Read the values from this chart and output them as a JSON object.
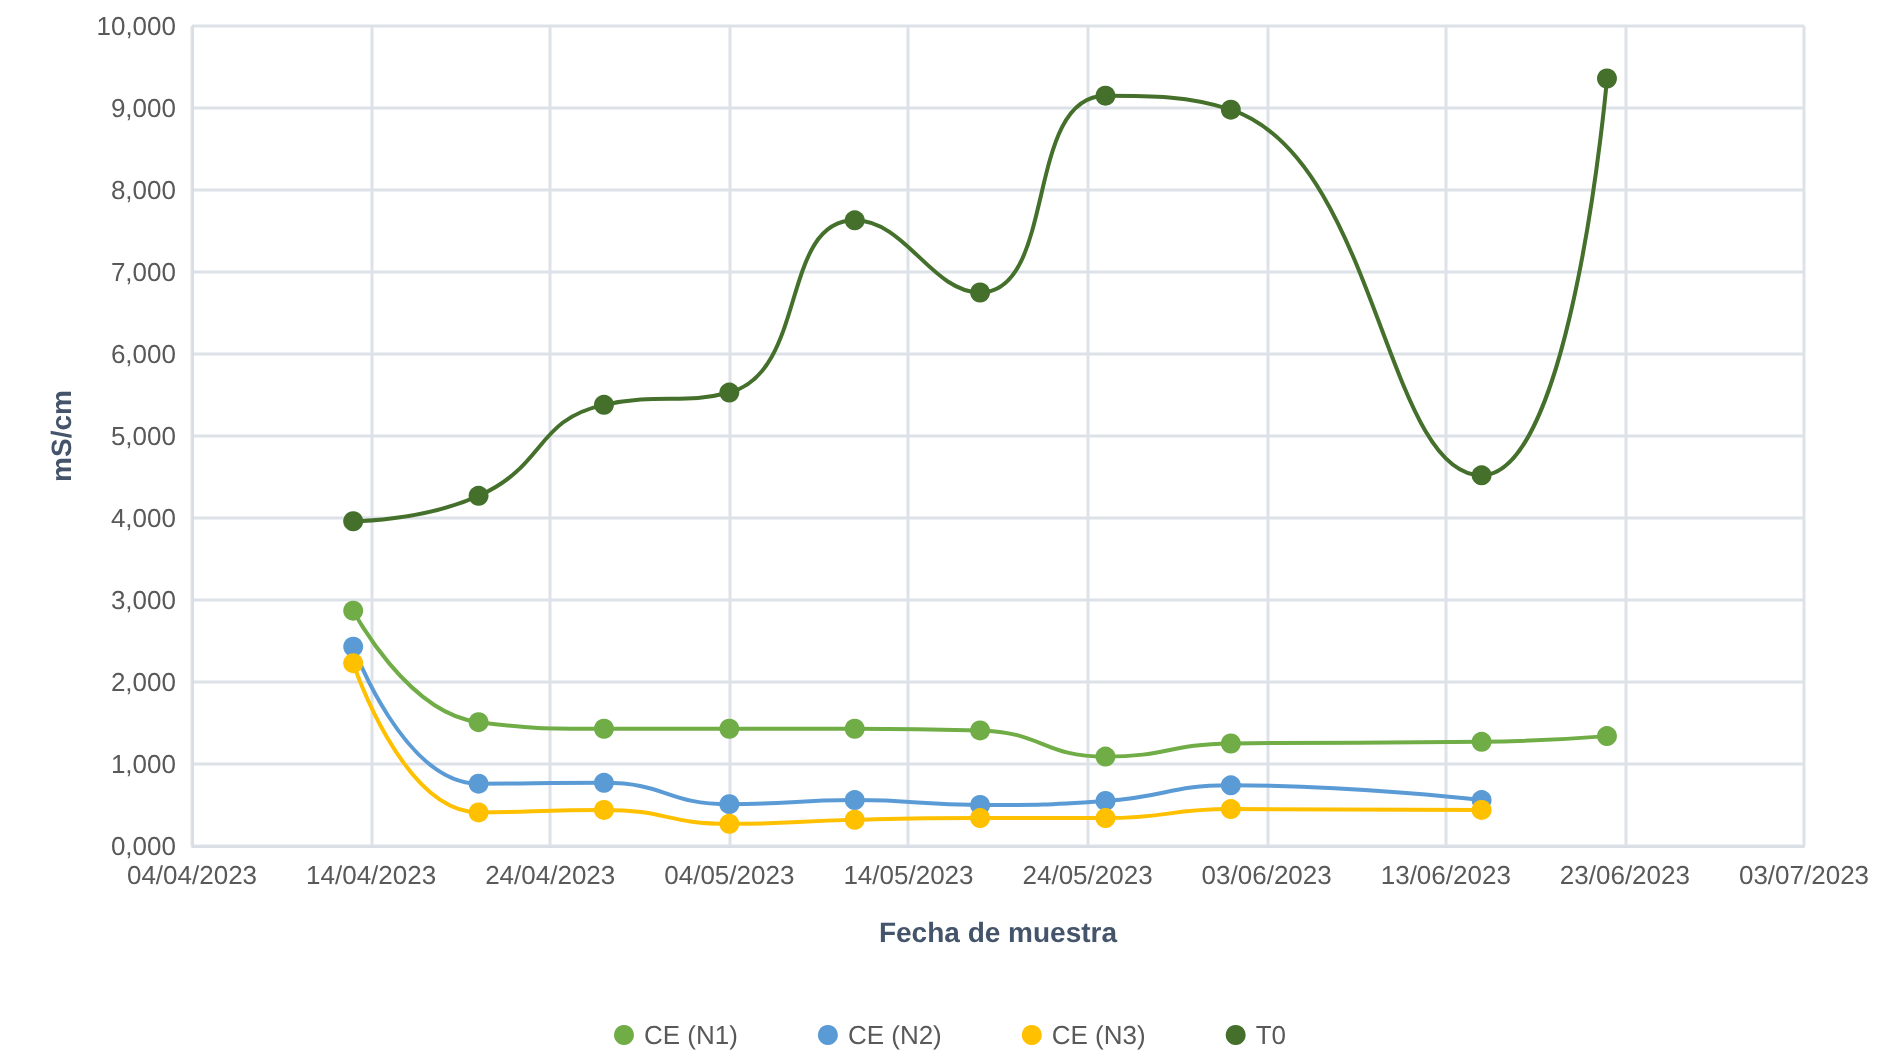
{
  "chart_data": {
    "type": "line",
    "xlabel": "Fecha de muestra",
    "ylabel": "mS/cm",
    "x": [
      "2023-04-13",
      "2023-04-20",
      "2023-04-27",
      "2023-05-04",
      "2023-05-11",
      "2023-05-18",
      "2023-05-25",
      "2023-06-01",
      "2023-06-15",
      "2023-06-22"
    ],
    "series": [
      {
        "name": "CE (N1)",
        "color": "#70ad47",
        "values": [
          2870,
          1510,
          1430,
          1430,
          1430,
          1410,
          1090,
          1250,
          1270,
          1340
        ]
      },
      {
        "name": "CE (N2)",
        "color": "#5b9bd5",
        "values": [
          2430,
          760,
          770,
          510,
          560,
          500,
          550,
          740,
          560,
          null
        ]
      },
      {
        "name": "CE (N3)",
        "color": "#ffc000",
        "values": [
          2230,
          410,
          440,
          270,
          320,
          340,
          340,
          450,
          440,
          null
        ]
      },
      {
        "name": "T0",
        "color": "#44702c",
        "values": [
          3960,
          4270,
          5380,
          5530,
          7630,
          6750,
          9150,
          8980,
          4520,
          9360
        ]
      }
    ],
    "xlim": [
      "2023-04-04",
      "2023-07-03"
    ],
    "xticks": [
      {
        "value": "2023-04-04",
        "label": "04/04/2023"
      },
      {
        "value": "2023-04-14",
        "label": "14/04/2023"
      },
      {
        "value": "2023-04-24",
        "label": "24/04/2023"
      },
      {
        "value": "2023-05-04",
        "label": "04/05/2023"
      },
      {
        "value": "2023-05-14",
        "label": "14/05/2023"
      },
      {
        "value": "2023-05-24",
        "label": "24/05/2023"
      },
      {
        "value": "2023-06-03",
        "label": "03/06/2023"
      },
      {
        "value": "2023-06-13",
        "label": "13/06/2023"
      },
      {
        "value": "2023-06-23",
        "label": "23/06/2023"
      },
      {
        "value": "2023-07-03",
        "label": "03/07/2023"
      }
    ],
    "ylim": [
      0,
      10000
    ],
    "yticks": [
      {
        "value": 0,
        "label": "0,000"
      },
      {
        "value": 1000,
        "label": "1,000"
      },
      {
        "value": 2000,
        "label": "2,000"
      },
      {
        "value": 3000,
        "label": "3,000"
      },
      {
        "value": 4000,
        "label": "4,000"
      },
      {
        "value": 5000,
        "label": "5,000"
      },
      {
        "value": 6000,
        "label": "6,000"
      },
      {
        "value": 7000,
        "label": "7,000"
      },
      {
        "value": 8000,
        "label": "8,000"
      },
      {
        "value": 9000,
        "label": "9,000"
      },
      {
        "value": 10000,
        "label": "10,000"
      }
    ],
    "grid": true,
    "legend": "bottom",
    "marker": "circle",
    "line_style": "solid"
  }
}
